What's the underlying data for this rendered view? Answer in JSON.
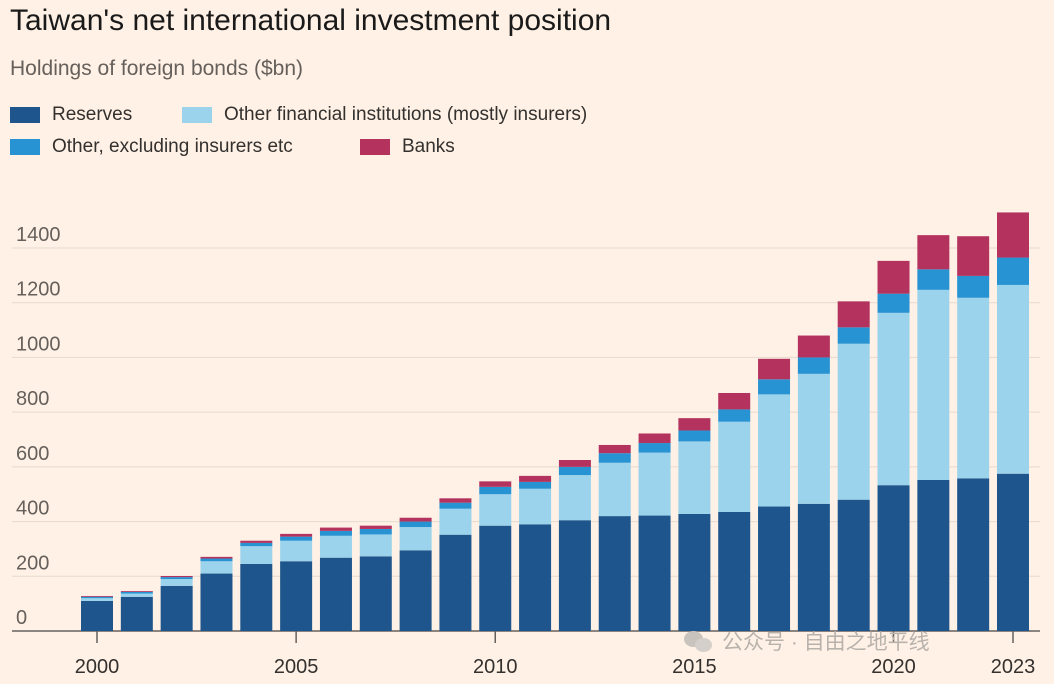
{
  "title": "Taiwan's net international investment position",
  "subtitle": "Holdings of foreign bonds ($bn)",
  "watermark": "公众号 · 自由之地平线",
  "legend": [
    {
      "label": "Reserves",
      "color": "#1E558C"
    },
    {
      "label": "Other financial institutions (mostly insurers)",
      "color": "#9BD3EC"
    },
    {
      "label": "Other, excluding insurers etc",
      "color": "#2793D3"
    },
    {
      "label": "Banks",
      "color": "#B3325E"
    }
  ],
  "chart_data": {
    "type": "bar",
    "stacked": true,
    "categories": [
      "2000",
      "2001",
      "2002",
      "2003",
      "2004",
      "2005",
      "2006",
      "2007",
      "2008",
      "2009",
      "2010",
      "2011",
      "2012",
      "2013",
      "2014",
      "2015",
      "2016",
      "2017",
      "2018",
      "2019",
      "2020",
      "2021",
      "2022",
      "2023"
    ],
    "x_tick_labels": [
      "2000",
      "2005",
      "2010",
      "2015",
      "2020",
      "2023"
    ],
    "series": [
      {
        "name": "Reserves",
        "color": "#1E558C",
        "values": [
          110,
          125,
          165,
          210,
          245,
          255,
          268,
          273,
          295,
          352,
          385,
          390,
          405,
          420,
          422,
          428,
          435,
          455,
          465,
          480,
          533,
          552,
          558,
          575
        ]
      },
      {
        "name": "Other financial institutions (mostly insurers)",
        "color": "#9BD3EC",
        "values": [
          10,
          12,
          25,
          45,
          65,
          75,
          80,
          80,
          85,
          95,
          115,
          130,
          165,
          195,
          230,
          265,
          330,
          410,
          475,
          570,
          630,
          695,
          660,
          690
        ]
      },
      {
        "name": "Other, excluding insurers etc",
        "color": "#2793D3",
        "values": [
          5,
          6,
          7,
          10,
          12,
          15,
          18,
          20,
          20,
          22,
          27,
          25,
          30,
          35,
          35,
          40,
          45,
          55,
          60,
          60,
          70,
          75,
          80,
          100
        ]
      },
      {
        "name": "Banks",
        "color": "#B3325E",
        "values": [
          3,
          3,
          4,
          6,
          8,
          10,
          12,
          12,
          14,
          16,
          20,
          22,
          25,
          30,
          35,
          45,
          60,
          75,
          80,
          95,
          120,
          125,
          145,
          165
        ]
      }
    ],
    "ylim": [
      0,
      1600
    ],
    "yticks": [
      0,
      200,
      400,
      600,
      800,
      1000,
      1200,
      1400
    ],
    "grid": true,
    "legend_position": "top-left"
  }
}
